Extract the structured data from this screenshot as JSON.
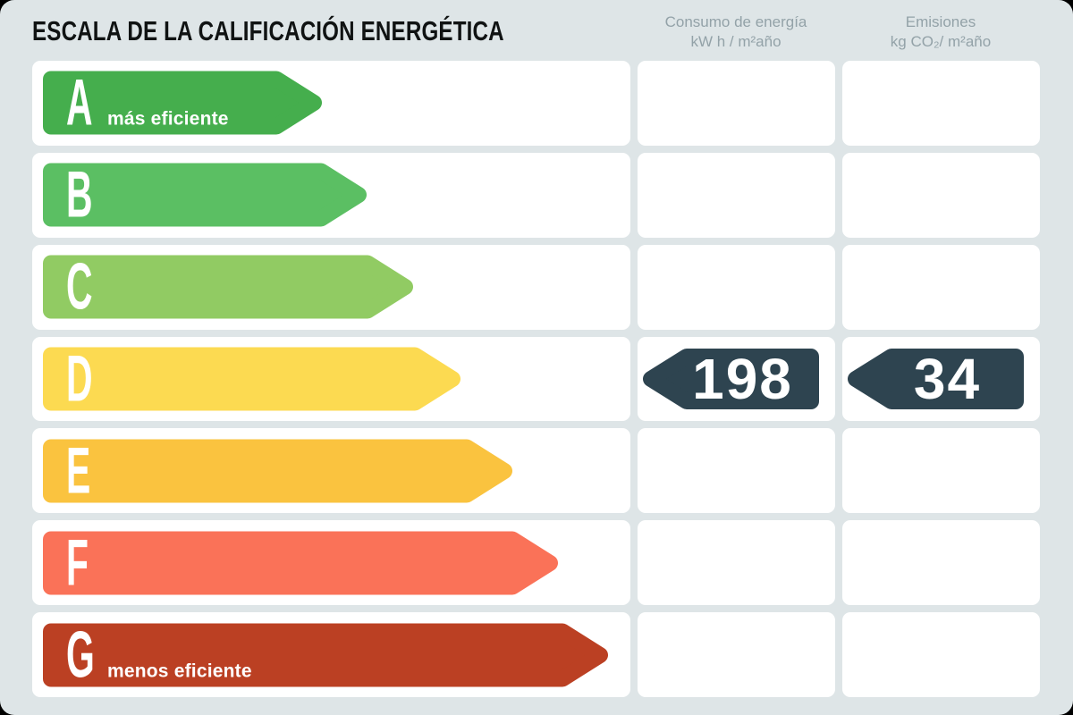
{
  "title": "ESCALA DE LA CALIFICACIÓN ENERGÉTICA",
  "columns": [
    {
      "id": "consumo",
      "line1": "Consumo de energía",
      "line2": "kW h / m²año"
    },
    {
      "id": "emisiones",
      "line1": "Emisiones",
      "line2": "kg CO₂/ m²año"
    }
  ],
  "ratings": [
    {
      "letter": "A",
      "note": "más eficiente",
      "color": "#45ae4d",
      "arrow_width": 312
    },
    {
      "letter": "B",
      "note": "",
      "color": "#5bbf63",
      "arrow_width": 362
    },
    {
      "letter": "C",
      "note": "",
      "color": "#91cb63",
      "arrow_width": 414
    },
    {
      "letter": "D",
      "note": "",
      "color": "#fcda51",
      "arrow_width": 467
    },
    {
      "letter": "E",
      "note": "",
      "color": "#fac33f",
      "arrow_width": 525
    },
    {
      "letter": "F",
      "note": "",
      "color": "#fa7258",
      "arrow_width": 576
    },
    {
      "letter": "G",
      "note": "menos eficiente",
      "color": "#bb4023",
      "arrow_width": 632
    }
  ],
  "result": {
    "rating": "D",
    "consumption": "198",
    "emissions": "34",
    "badge_color": "#2e4450"
  },
  "colors": {
    "page_background": "#dee5e7",
    "cell_background": "#ffffff",
    "title_text": "#101313",
    "column_header_text": "#93a2a8",
    "badge": "#2e4450"
  },
  "chart_data": {
    "type": "bar",
    "title": "ESCALA DE LA CALIFICACIÓN ENERGÉTICA",
    "categories": [
      "A",
      "B",
      "C",
      "D",
      "E",
      "F",
      "G"
    ],
    "values": [
      312,
      362,
      414,
      467,
      525,
      576,
      632
    ],
    "value_note": "ordinal rating scale; bar length increases from A (más eficiente) to G (menos eficiente), no numeric axis shown",
    "bar_colors": [
      "#45ae4d",
      "#5bbf63",
      "#91cb63",
      "#fcda51",
      "#fac33f",
      "#fa7258",
      "#bb4023"
    ],
    "series": [
      {
        "name": "Consumo de energía kW h / m²año",
        "annotated_category": "D",
        "value": 198
      },
      {
        "name": "Emisiones kg CO₂/ m²año",
        "annotated_category": "D",
        "value": 34
      }
    ],
    "xlabel": "",
    "ylabel": "",
    "legend_position": "none",
    "grid": false,
    "annotations": [
      "más eficiente on A",
      "menos eficiente on G",
      "dark left-pointing value badges on row D: 198 and 34"
    ]
  }
}
